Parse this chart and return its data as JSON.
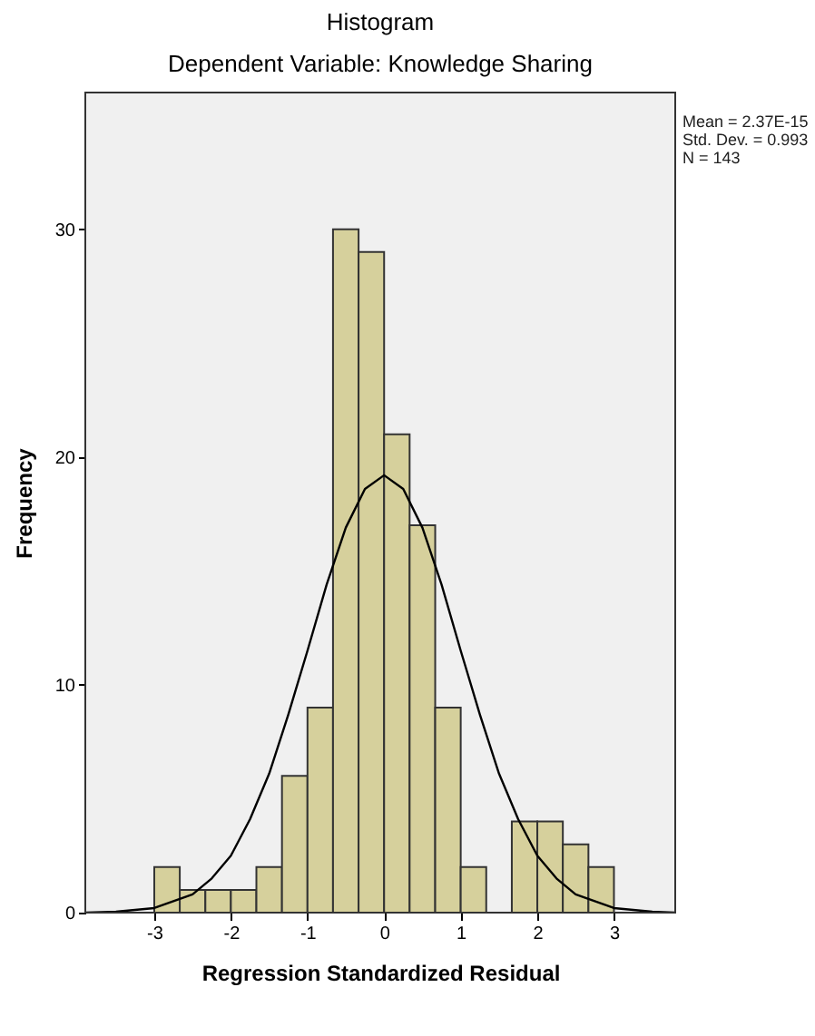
{
  "chart_data": {
    "type": "histogram",
    "title": "Histogram",
    "subtitle": "Dependent Variable: Knowledge Sharing",
    "xlabel": "Regression Standardized Residual",
    "ylabel": "Frequency",
    "bins": [
      -3,
      -2.667,
      -2.333,
      -2,
      -1.667,
      -1.333,
      -1,
      -0.667,
      -0.333,
      0,
      0.333,
      0.667,
      1,
      1.333,
      1.667,
      2,
      2.333,
      2.667,
      3
    ],
    "values": [
      2,
      1,
      1,
      1,
      2,
      6,
      9,
      30,
      29,
      21,
      17,
      9,
      2,
      0,
      4,
      4,
      3,
      2
    ],
    "color": "#d6d09c",
    "series": [
      {
        "type": "line",
        "color": "#000000",
        "x": [
          -3.9,
          -3.5,
          -3,
          -2.5,
          -2.25,
          -2,
          -1.75,
          -1.5,
          -1.25,
          -1,
          -0.75,
          -0.5,
          -0.25,
          0,
          0.25,
          0.5,
          0.75,
          1,
          1.25,
          1.5,
          1.75,
          2,
          2.25,
          2.5,
          3,
          3.5,
          3.8
        ],
        "values": [
          0,
          0.04,
          0.2,
          0.8,
          1.5,
          2.5,
          4.1,
          6.1,
          8.7,
          11.5,
          14.4,
          16.9,
          18.6,
          19.2,
          18.6,
          16.9,
          14.4,
          11.5,
          8.7,
          6.1,
          4.1,
          2.5,
          1.5,
          0.8,
          0.2,
          0.04,
          0
        ]
      }
    ],
    "xlim": [
      -3.9,
      3.8
    ],
    "ylim": [
      0,
      36
    ],
    "xticks": [
      -3,
      -2,
      -1,
      0,
      1,
      2,
      3
    ],
    "yticks": [
      0,
      10,
      20,
      30
    ],
    "annotations": [
      "Mean = 2.37E-15",
      "Std. Dev. = 0.993",
      "N = 143"
    ]
  }
}
